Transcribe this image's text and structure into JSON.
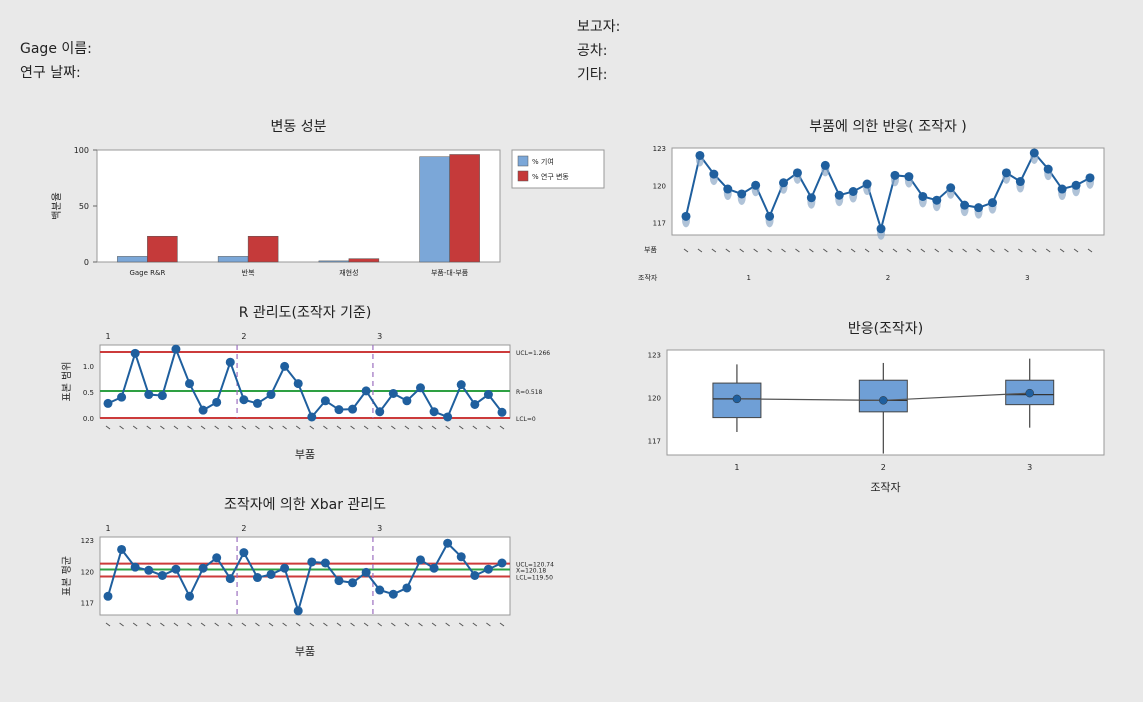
{
  "header": {
    "gage_name_label": "Gage 이름:",
    "study_date_label": "연구 날짜:",
    "reporter_label": "보고자:",
    "tolerance_label": "공차:",
    "misc_label": "기타:"
  },
  "colors": {
    "blue": "#1f5f9e",
    "bar_blue": "#7ba7d8",
    "bar_red": "#c53a3a",
    "limit_red": "#cc3b3b",
    "center_green": "#2ea043",
    "box_fill": "#6f9fd6",
    "divider": "#9b6fbf"
  },
  "chart_data": [
    {
      "type": "bar",
      "title": "변동 성분",
      "ylabel": "백분율",
      "categories": [
        "Gage R&R",
        "반복",
        "재현성",
        "부품-대-부품"
      ],
      "series": [
        {
          "name": "% 기여",
          "values": [
            5,
            5,
            1,
            94
          ]
        },
        {
          "name": "% 연구 변동",
          "values": [
            23,
            23,
            3,
            96
          ]
        }
      ],
      "ylim": [
        0,
        100
      ],
      "yticks": [
        "0",
        "50",
        "100"
      ],
      "legend": "top-right"
    },
    {
      "type": "line",
      "title": "R 관리도(조작자 기준)",
      "xlabel": "부품",
      "ylabel": "표본 범위",
      "operators": [
        "1",
        "2",
        "3"
      ],
      "values": [
        0.28,
        0.4,
        1.24,
        0.45,
        0.43,
        1.32,
        0.66,
        0.15,
        0.3,
        1.07,
        0.35,
        0.28,
        0.45,
        0.99,
        0.66,
        0.02,
        0.33,
        0.16,
        0.17,
        0.52,
        0.12,
        0.47,
        0.33,
        0.58,
        0.12,
        0.02,
        0.64,
        0.26,
        0.45,
        0.11
      ],
      "ylim": [
        0,
        1.4
      ],
      "yticks": [
        "0.0",
        "0.5",
        "1.0"
      ],
      "ucl": 1.266,
      "center": 0.518,
      "lcl": 0,
      "labels": {
        "ucl": "UCL=1.266",
        "center": "R=0.518",
        "lcl": "LCL=0"
      }
    },
    {
      "type": "line",
      "title": "조작자에 의한 Xbar 관리도",
      "xlabel": "부품",
      "ylabel": "표본 평균",
      "operators": [
        "1",
        "2",
        "3"
      ],
      "values": [
        117.6,
        122.1,
        120.4,
        120.1,
        119.6,
        120.2,
        117.6,
        120.3,
        121.3,
        119.3,
        121.8,
        119.4,
        119.7,
        120.3,
        116.2,
        120.9,
        120.8,
        119.1,
        118.9,
        119.9,
        118.2,
        117.8,
        118.4,
        121.1,
        120.3,
        122.7,
        121.4,
        119.6,
        120.2,
        120.8
      ],
      "ylim": [
        115.8,
        123.3
      ],
      "yticks": [
        "117",
        "120",
        "123"
      ],
      "ucl": 120.74,
      "center": 120.18,
      "lcl": 119.5,
      "labels": {
        "ucl": "UCL=120.74",
        "center": "X=120.18",
        "lcl": "LCL=119.50"
      }
    },
    {
      "type": "line",
      "title": "부품에 의한 반응( 조작자 )",
      "x_row_labels": [
        "부품",
        "조작자"
      ],
      "operators": [
        "1",
        "2",
        "3"
      ],
      "values": [
        117.5,
        122.4,
        120.9,
        119.7,
        119.3,
        120.0,
        117.5,
        120.2,
        121.0,
        119.0,
        121.6,
        119.2,
        119.5,
        120.1,
        116.5,
        120.8,
        120.7,
        119.1,
        118.8,
        119.8,
        118.4,
        118.2,
        118.6,
        121.0,
        120.3,
        122.6,
        121.3,
        119.7,
        120.0,
        120.6
      ],
      "ylim": [
        116,
        123
      ],
      "yticks": [
        "117",
        "120",
        "123"
      ]
    },
    {
      "type": "box",
      "title": "반응(조작자)",
      "xlabel": "조작자",
      "categories": [
        "1",
        "2",
        "3"
      ],
      "boxes": [
        {
          "min": 117.6,
          "q1": 118.6,
          "median": 119.9,
          "q3": 121.0,
          "max": 122.3,
          "mean": 119.9
        },
        {
          "min": 116.1,
          "q1": 119.0,
          "median": 119.8,
          "q3": 121.2,
          "max": 122.4,
          "mean": 119.8
        },
        {
          "min": 117.9,
          "q1": 119.5,
          "median": 120.2,
          "q3": 121.2,
          "max": 122.7,
          "mean": 120.3
        }
      ],
      "ylim": [
        116,
        123.3
      ],
      "yticks": [
        "117",
        "120",
        "123"
      ]
    }
  ]
}
